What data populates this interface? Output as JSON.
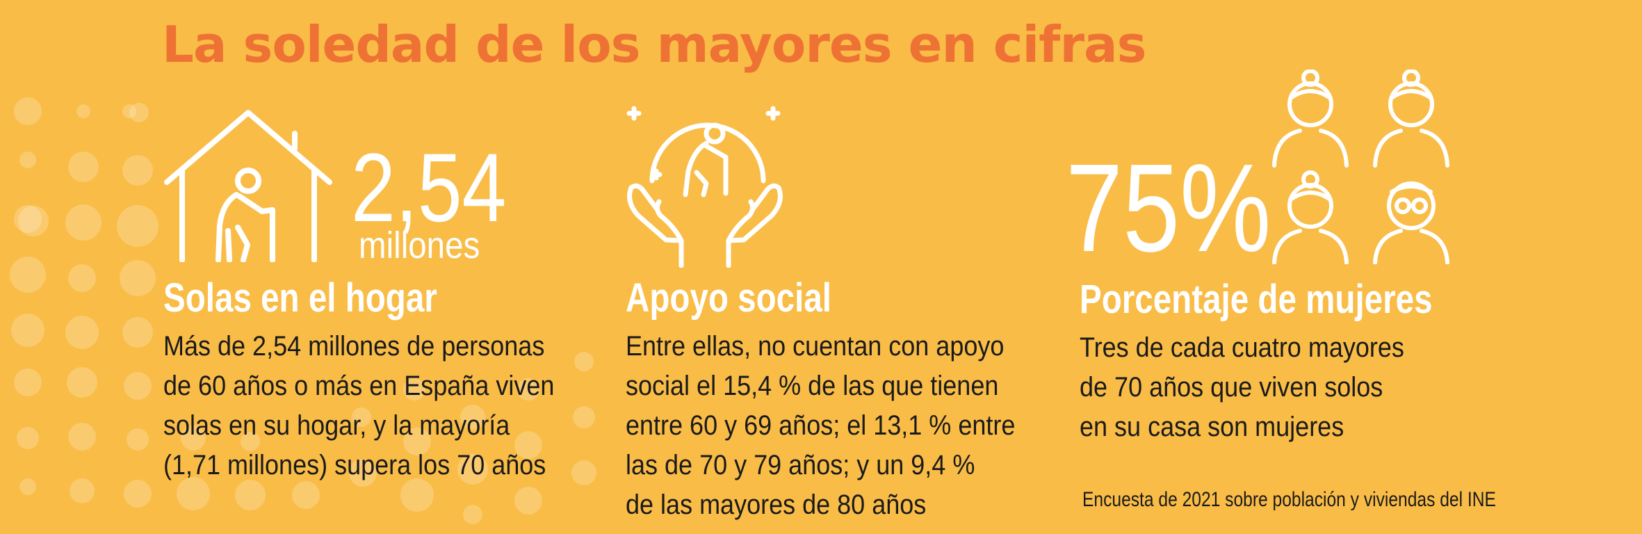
{
  "title": "La soledad de los mayores en cifras",
  "colors": {
    "background": "#F9BC47",
    "title": "#EE7234",
    "white": "#FFFFFF",
    "text": "#1A1A1A"
  },
  "sections": [
    {
      "icon": "house-elderly-person-icon",
      "figure": "2,54",
      "unit": "millones",
      "heading": "Solas en el hogar",
      "lines": [
        "Más de 2,54 millones de personas",
        "de 60 años o más en España viven",
        "solas en su hogar, y la mayoría",
        "(1,71 millones) supera los 70 años"
      ]
    },
    {
      "icon": "hands-supporting-elderly-icon",
      "heading": "Apoyo social",
      "lines": [
        "Entre ellas, no cuentan con apoyo",
        "social el 15,4 % de las que tienen",
        "entre 60 y 69 años; el 13,1 % entre",
        "las de 70 y 79 años; y un 9,4 %",
        "de las mayores de 80 años"
      ]
    },
    {
      "icon": "four-elderly-people-icon",
      "figure": "75%",
      "heading": "Porcentaje de mujeres",
      "lines": [
        "Tres de cada cuatro mayores",
        "de 70 años que viven solos",
        "en su casa son mujeres"
      ]
    }
  ],
  "source": "Encuesta de 2021 sobre población y viviendas del INE"
}
